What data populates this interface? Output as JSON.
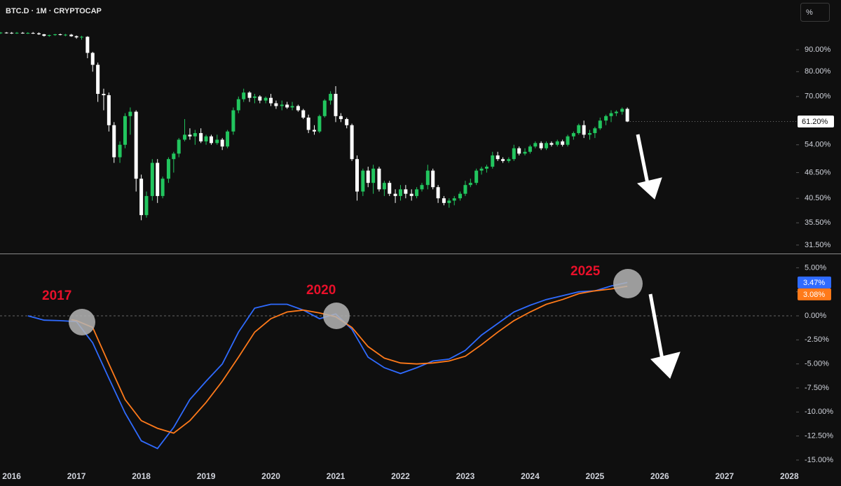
{
  "toolbar": {
    "scale_button": "%"
  },
  "chart_data": [
    {
      "type": "candlestick",
      "title": "BTC.D · 1M · CRYPTOCAP",
      "log_scale": true,
      "up_color": "#22c55e",
      "down_color": "#ffffff",
      "xlim": [
        2015.82,
        2028.04
      ],
      "ylim": [
        30.1,
        117.6
      ],
      "yticks": [
        {
          "value": 90,
          "label": "90.00%"
        },
        {
          "value": 80,
          "label": "80.00%"
        },
        {
          "value": 70,
          "label": "70.00%"
        },
        {
          "value": 54,
          "label": "54.00%"
        },
        {
          "value": 46.5,
          "label": "46.50%"
        },
        {
          "value": 40.5,
          "label": "40.50%"
        },
        {
          "value": 35.5,
          "label": "35.50%"
        },
        {
          "value": 31.5,
          "label": "31.50%"
        }
      ],
      "last_label": "61.20%",
      "x": [
        2015.83,
        2015.92,
        2016,
        2016.08,
        2016.17,
        2016.25,
        2016.33,
        2016.42,
        2016.5,
        2016.58,
        2016.67,
        2016.75,
        2016.83,
        2016.92,
        2017,
        2017.08,
        2017.17,
        2017.25,
        2017.33,
        2017.42,
        2017.5,
        2017.58,
        2017.67,
        2017.75,
        2017.83,
        2017.92,
        2018,
        2018.08,
        2018.17,
        2018.25,
        2018.33,
        2018.42,
        2018.5,
        2018.58,
        2018.67,
        2018.75,
        2018.83,
        2018.92,
        2019,
        2019.08,
        2019.17,
        2019.25,
        2019.33,
        2019.42,
        2019.5,
        2019.58,
        2019.67,
        2019.75,
        2019.83,
        2019.92,
        2020,
        2020.08,
        2020.17,
        2020.25,
        2020.33,
        2020.42,
        2020.5,
        2020.58,
        2020.67,
        2020.75,
        2020.83,
        2020.92,
        2021,
        2021.08,
        2021.17,
        2021.25,
        2021.33,
        2021.42,
        2021.5,
        2021.58,
        2021.67,
        2021.75,
        2021.83,
        2021.92,
        2022,
        2022.08,
        2022.17,
        2022.25,
        2022.33,
        2022.42,
        2022.5,
        2022.58,
        2022.67,
        2022.75,
        2022.83,
        2022.92,
        2023,
        2023.08,
        2023.17,
        2023.25,
        2023.33,
        2023.42,
        2023.5,
        2023.58,
        2023.67,
        2023.75,
        2023.83,
        2023.92,
        2024,
        2024.08,
        2024.17,
        2024.25,
        2024.33,
        2024.42,
        2024.5,
        2024.58,
        2024.67,
        2024.75,
        2024.83,
        2024.92,
        2025,
        2025.08,
        2025.17,
        2025.25,
        2025.33,
        2025.42,
        2025.5
      ],
      "open": [
        98.5,
        98.7,
        98.6,
        98.5,
        98.6,
        98.4,
        98.5,
        98.3,
        97.8,
        97,
        97.4,
        97.8,
        97.5,
        97.6,
        96.8,
        96.2,
        96.5,
        88.5,
        83,
        71,
        70.5,
        60,
        50.5,
        54,
        63,
        64.5,
        45,
        37,
        41,
        49,
        41,
        45,
        50,
        51.5,
        55.5,
        57,
        56.5,
        57.5,
        55,
        56.5,
        54.5,
        55.5,
        53.5,
        58,
        65,
        69,
        71.5,
        69.5,
        70,
        68.5,
        69.5,
        67.5,
        66.5,
        67,
        66,
        66.5,
        65,
        62.5,
        58.5,
        58,
        63,
        68.5,
        71,
        63,
        62,
        60,
        50,
        42,
        47,
        44,
        47.5,
        42.5,
        44,
        41.5,
        41,
        42.5,
        41.5,
        41,
        42.5,
        43.5,
        47,
        43,
        40.5,
        39.5,
        40,
        40.5,
        41.5,
        43.5,
        44,
        47,
        47.5,
        48,
        51,
        50,
        49.5,
        50,
        53,
        51.5,
        52,
        53.5,
        54.5,
        53,
        54.5,
        54,
        55,
        54,
        56.5,
        57.5,
        60,
        57,
        57.5,
        59,
        61.5,
        63,
        64,
        64.5,
        65.5
      ],
      "high": [
        99,
        99,
        99,
        99,
        99,
        98.9,
        99,
        98.8,
        98,
        97.6,
        98,
        98.2,
        98,
        98,
        97.2,
        97,
        96.8,
        89,
        84,
        73,
        71.5,
        61,
        55,
        64,
        66,
        65,
        46,
        42,
        50,
        50,
        45.5,
        50.5,
        52,
        56,
        62,
        59,
        58.5,
        59,
        57,
        57,
        57,
        56,
        58.5,
        66,
        70,
        73,
        72,
        71,
        70.5,
        70,
        71,
        68.5,
        68.5,
        68,
        68,
        67,
        65.5,
        63.5,
        60,
        63.5,
        69,
        72,
        74,
        64,
        62.5,
        60.5,
        51,
        47.5,
        48,
        48.5,
        48,
        44.5,
        44.5,
        42.5,
        43.5,
        43.5,
        42.5,
        43,
        44,
        48.5,
        47.5,
        43.5,
        41,
        40.5,
        41,
        42,
        44.5,
        45,
        47.5,
        48,
        48.5,
        52,
        52,
        50.5,
        50.5,
        54,
        53.5,
        53,
        54,
        55,
        55,
        55,
        55,
        55.5,
        55.5,
        57,
        58,
        60.5,
        61.5,
        58.5,
        59.5,
        62.5,
        63.5,
        65,
        65,
        66,
        66
      ],
      "low": [
        98,
        98.2,
        98,
        98,
        98.1,
        98,
        98,
        97.5,
        96.6,
        96.5,
        97,
        97.2,
        96.8,
        96.5,
        95.5,
        95,
        86,
        80,
        68,
        65,
        58,
        49,
        49,
        53,
        57,
        42,
        36,
        36.5,
        40,
        39.5,
        40.5,
        44,
        46.5,
        50.5,
        55,
        55.5,
        54,
        54.5,
        54,
        54,
        54,
        52.5,
        53,
        57,
        64,
        68,
        68,
        67.5,
        67.5,
        67.5,
        66.5,
        65.5,
        65,
        65.5,
        65,
        64.5,
        62,
        57.5,
        57,
        57.5,
        62.5,
        67,
        61,
        61,
        59,
        49.5,
        40,
        41,
        43,
        41.5,
        42,
        41,
        41,
        39.5,
        40,
        40.5,
        40,
        40.5,
        42,
        42.5,
        42.5,
        39.5,
        39,
        38.5,
        39,
        40,
        41,
        43,
        43.5,
        46,
        46.5,
        47.5,
        49.5,
        49,
        49,
        49.5,
        51,
        51,
        51.5,
        53,
        52.5,
        52.5,
        53.5,
        53.5,
        53.5,
        53.5,
        55.5,
        57,
        56,
        55.5,
        56,
        58.5,
        60,
        61,
        63,
        63.5,
        61
      ],
      "close": [
        98.7,
        98.6,
        98.5,
        98.6,
        98.4,
        98.5,
        98.3,
        97.8,
        97,
        97.4,
        97.8,
        97.5,
        97.6,
        96.8,
        96.2,
        96.5,
        88.5,
        83,
        71,
        70.5,
        60,
        50.5,
        54,
        63,
        64.5,
        45,
        37,
        41,
        49,
        41,
        45,
        50,
        51.5,
        55.5,
        57,
        56.5,
        57.5,
        55,
        56.5,
        54.5,
        55.5,
        53.5,
        58,
        65,
        69,
        71.5,
        69.5,
        70,
        68.5,
        69.5,
        67.5,
        66.5,
        67,
        66,
        66.5,
        65,
        62.5,
        58.5,
        58,
        63,
        68.5,
        71,
        63,
        62,
        60,
        50,
        42,
        47,
        44,
        47.5,
        42.5,
        44,
        41.5,
        41,
        42.5,
        41.5,
        41,
        42.5,
        43.5,
        47,
        43,
        40.5,
        39.5,
        40,
        40.5,
        41.5,
        43.5,
        44,
        47,
        47.5,
        48,
        51,
        50,
        49.5,
        50,
        53,
        51.5,
        52,
        53.5,
        54.5,
        53,
        54.5,
        54,
        55,
        54,
        56.5,
        57.5,
        60,
        57,
        57.5,
        59,
        61.5,
        63,
        64,
        64.5,
        65.5,
        61.2
      ]
    },
    {
      "type": "line",
      "xlim": [
        2015.82,
        2028.04
      ],
      "ylim": [
        -15.95,
        6.41
      ],
      "xticks": [
        2016,
        2017,
        2018,
        2019,
        2020,
        2021,
        2022,
        2023,
        2024,
        2025,
        2026,
        2027,
        2028
      ],
      "yticks": [
        {
          "value": 5,
          "label": "5.00%"
        },
        {
          "value": 2.5,
          "label": "2.50%"
        },
        {
          "value": 0,
          "label": "0.00%"
        },
        {
          "value": -2.5,
          "label": "-2.50%"
        },
        {
          "value": -5,
          "label": "-5.00%"
        },
        {
          "value": -7.5,
          "label": "-7.50%"
        },
        {
          "value": -10,
          "label": "-10.00%"
        },
        {
          "value": -12.5,
          "label": "-12.50%"
        },
        {
          "value": -15,
          "label": "-15.00%"
        }
      ],
      "zero_line": true,
      "annotations": [
        "2017",
        "2020",
        "2025"
      ],
      "series": [
        {
          "color": "#2f6bff",
          "last_label": "3.47%",
          "x": [
            2016.25,
            2016.5,
            2016.75,
            2017,
            2017.25,
            2017.5,
            2017.75,
            2018,
            2018.25,
            2018.5,
            2018.75,
            2019,
            2019.25,
            2019.5,
            2019.75,
            2020,
            2020.25,
            2020.5,
            2020.75,
            2021,
            2021.25,
            2021.5,
            2021.75,
            2022,
            2022.25,
            2022.5,
            2022.75,
            2023,
            2023.25,
            2023.5,
            2023.75,
            2024,
            2024.25,
            2024.5,
            2024.75,
            2025,
            2025.25,
            2025.5
          ],
          "values": [
            0,
            -0.45,
            -0.5,
            -0.6,
            -2.8,
            -6.5,
            -10.1,
            -13,
            -13.8,
            -11.6,
            -8.7,
            -6.8,
            -5,
            -1.7,
            0.8,
            1.2,
            1.2,
            0.6,
            -0.3,
            0.2,
            -1.4,
            -4.3,
            -5.4,
            -6,
            -5.4,
            -4.7,
            -4.5,
            -3.6,
            -2,
            -0.8,
            0.4,
            1.1,
            1.7,
            2.1,
            2.5,
            2.6,
            3.1,
            3.47
          ]
        },
        {
          "color": "#ff7a1a",
          "last_label": "3.08%",
          "x": [
            2016.92,
            2017,
            2017.25,
            2017.5,
            2017.75,
            2018,
            2018.25,
            2018.5,
            2018.75,
            2019,
            2019.25,
            2019.5,
            2019.75,
            2020,
            2020.25,
            2020.5,
            2020.75,
            2021,
            2021.25,
            2021.5,
            2021.75,
            2022,
            2022.25,
            2022.5,
            2022.75,
            2023,
            2023.25,
            2023.5,
            2023.75,
            2024,
            2024.25,
            2024.5,
            2024.75,
            2025,
            2025.25,
            2025.5
          ],
          "values": [
            -0.4,
            -0.5,
            -1.2,
            -5,
            -8.7,
            -10.9,
            -11.7,
            -12.2,
            -10.9,
            -9,
            -6.8,
            -4.3,
            -1.7,
            -0.3,
            0.4,
            0.6,
            0.3,
            -0.1,
            -1.2,
            -3.2,
            -4.4,
            -4.9,
            -5,
            -4.9,
            -4.7,
            -4.2,
            -3,
            -1.7,
            -0.5,
            0.4,
            1.2,
            1.7,
            2.3,
            2.6,
            2.8,
            3.08
          ]
        }
      ]
    }
  ]
}
